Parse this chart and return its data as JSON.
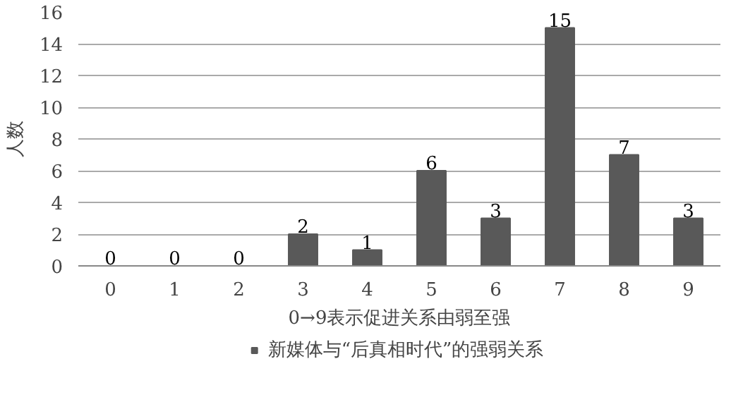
{
  "chart_data": {
    "type": "bar",
    "categories": [
      "0",
      "1",
      "2",
      "3",
      "4",
      "5",
      "6",
      "7",
      "8",
      "9"
    ],
    "series": [
      {
        "name": "新媒体与“后真相时代”的强弱关系",
        "color": "#595959",
        "values": [
          0,
          0,
          0,
          2,
          1,
          6,
          3,
          15,
          7,
          3
        ]
      }
    ],
    "xlabel": "0→9表示促进关系由弱至强",
    "ylabel": "人数",
    "ylim": [
      0,
      16
    ],
    "yticks": [
      0,
      2,
      4,
      6,
      8,
      10,
      12,
      14,
      16
    ],
    "grid": "y",
    "legend": "bottom",
    "data_labels": true
  }
}
